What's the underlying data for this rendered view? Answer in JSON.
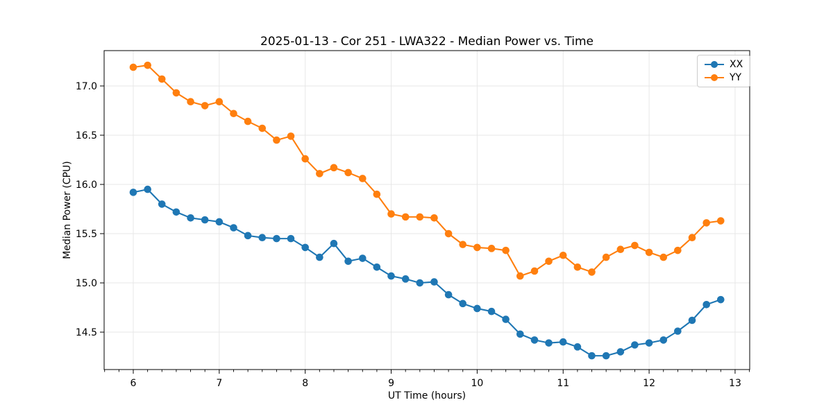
{
  "figure": {
    "background": "#ffffff"
  },
  "chart_data": {
    "type": "line",
    "title": "2025-01-13 - Cor 251 - LWA322 - Median Power vs. Time",
    "xlabel": "UT Time (hours)",
    "ylabel": "Median Power (CPU)",
    "xlim": [
      5.661,
      13.17
    ],
    "ylim": [
      14.12,
      17.359
    ],
    "x_ticks": [
      6,
      7,
      8,
      9,
      10,
      11,
      12,
      13
    ],
    "y_ticks": [
      14.5,
      15.0,
      15.5,
      16.0,
      16.5,
      17.0
    ],
    "x_minor_tick_step": 0.166667,
    "grid": true,
    "grid_color": "#e7e7e7",
    "legend_position": "upper right",
    "x": [
      6.0,
      6.167,
      6.333,
      6.5,
      6.667,
      6.833,
      7.0,
      7.167,
      7.333,
      7.5,
      7.667,
      7.833,
      8.0,
      8.167,
      8.333,
      8.5,
      8.667,
      8.833,
      9.0,
      9.167,
      9.333,
      9.5,
      9.667,
      9.833,
      10.0,
      10.167,
      10.333,
      10.5,
      10.667,
      10.833,
      11.0,
      11.167,
      11.333,
      11.5,
      11.667,
      11.833,
      12.0,
      12.167,
      12.333,
      12.5,
      12.667,
      12.833
    ],
    "series": [
      {
        "name": "XX",
        "color": "#1f77b4",
        "values": [
          15.92,
          15.95,
          15.8,
          15.72,
          15.66,
          15.64,
          15.62,
          15.56,
          15.48,
          15.46,
          15.45,
          15.45,
          15.36,
          15.26,
          15.4,
          15.22,
          15.25,
          15.16,
          15.07,
          15.04,
          15.0,
          15.01,
          14.88,
          14.79,
          14.74,
          14.71,
          14.63,
          14.48,
          14.42,
          14.39,
          14.4,
          14.35,
          14.26,
          14.26,
          14.3,
          14.37,
          14.39,
          14.42,
          14.51,
          14.62,
          14.78,
          14.83
        ]
      },
      {
        "name": "YY",
        "color": "#ff7f0e",
        "values": [
          17.19,
          17.21,
          17.07,
          16.93,
          16.84,
          16.8,
          16.84,
          16.72,
          16.64,
          16.57,
          16.45,
          16.49,
          16.26,
          16.11,
          16.17,
          16.12,
          16.06,
          15.9,
          15.7,
          15.67,
          15.67,
          15.66,
          15.5,
          15.39,
          15.36,
          15.35,
          15.33,
          15.07,
          15.12,
          15.22,
          15.28,
          15.16,
          15.11,
          15.26,
          15.34,
          15.38,
          15.31,
          15.26,
          15.33,
          15.46,
          15.61,
          15.63
        ]
      }
    ]
  }
}
